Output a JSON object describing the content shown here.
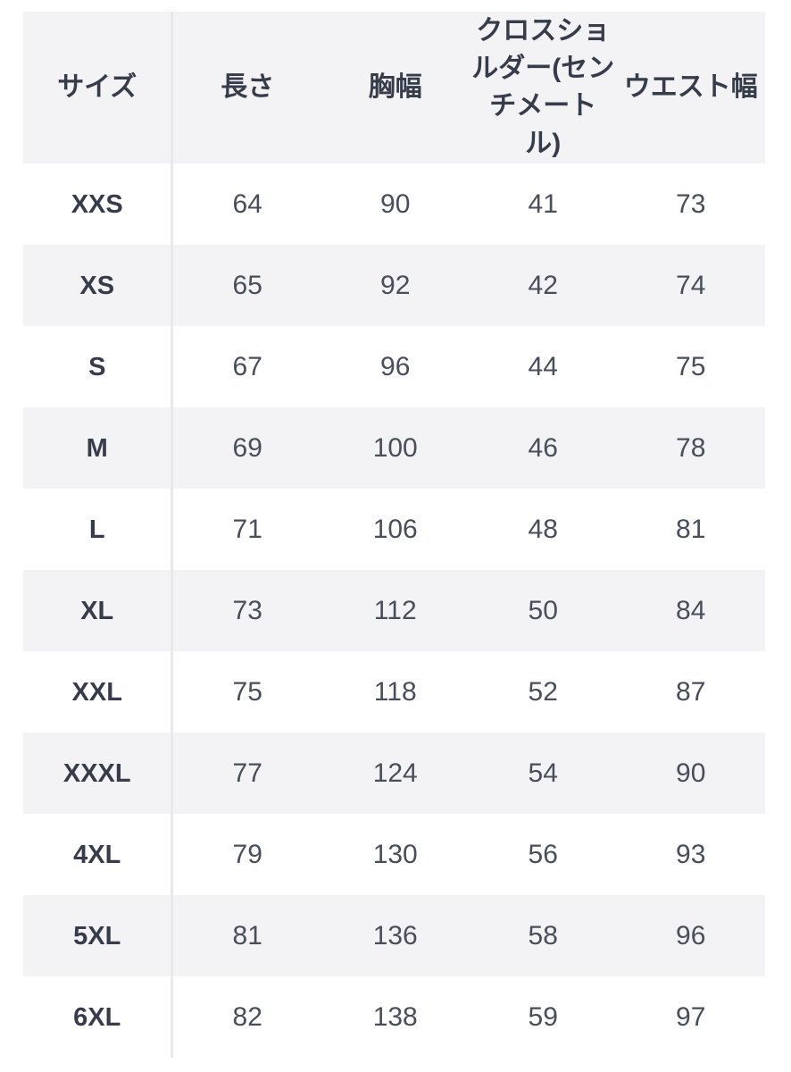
{
  "chart_data": {
    "type": "table",
    "columns": [
      "サイズ",
      "長さ",
      "胸幅",
      "クロスショルダー(センチメートル)",
      "ウエスト幅"
    ],
    "rows": [
      [
        "XXS",
        64,
        90,
        41,
        73
      ],
      [
        "XS",
        65,
        92,
        42,
        74
      ],
      [
        "S",
        67,
        96,
        44,
        75
      ],
      [
        "M",
        69,
        100,
        46,
        78
      ],
      [
        "L",
        71,
        106,
        48,
        81
      ],
      [
        "XL",
        73,
        112,
        50,
        84
      ],
      [
        "XXL",
        75,
        118,
        52,
        87
      ],
      [
        "XXXL",
        77,
        124,
        54,
        90
      ],
      [
        "4XL",
        79,
        130,
        56,
        93
      ],
      [
        "5XL",
        81,
        136,
        58,
        96
      ],
      [
        "6XL",
        82,
        138,
        59,
        97
      ]
    ],
    "layout": {
      "grid": false,
      "striped": true,
      "header_position": "top"
    }
  },
  "header_display": {
    "cross_shoulder": "クロスショ\nルダー(セン\nチメート\nル)"
  },
  "colors": {
    "stripe_background": "#f3f3f5",
    "column_divider": "#e9e9ec",
    "header_text": "#363c49",
    "value_text": "#484e5a",
    "page_background": "#ffffff"
  }
}
